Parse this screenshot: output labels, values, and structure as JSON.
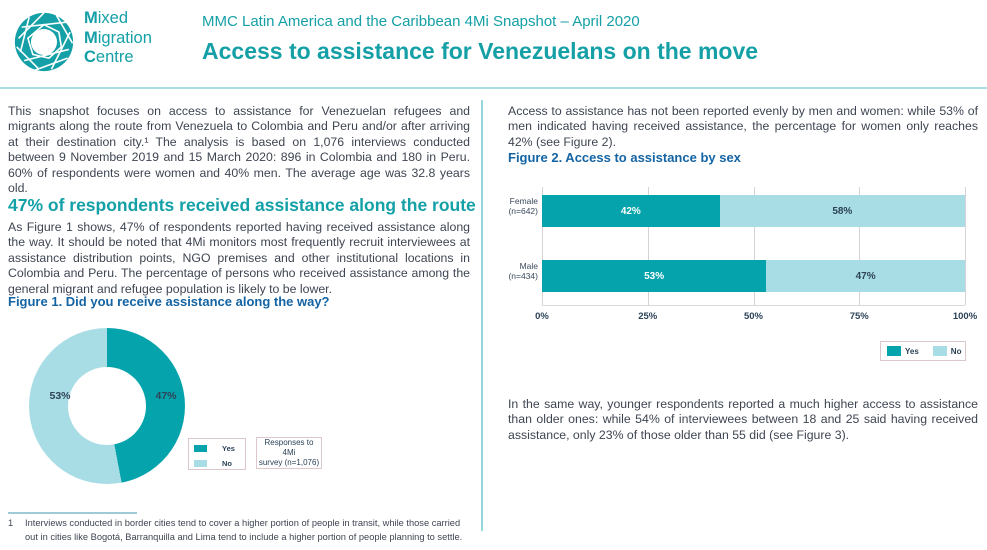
{
  "header": {
    "logo_lines": [
      "Mixed",
      "Migration",
      "Centre"
    ],
    "kicker": "MMC Latin America and the Caribbean 4Mi Snapshot – April 2020",
    "title": "Access to assistance for Venezuelans on the move"
  },
  "colors": {
    "teal_brand": "#14a0a6",
    "series_yes": "#05a3ab",
    "series_no": "#a9dde5",
    "figure_title_blue": "#1464a4"
  },
  "left": {
    "intro": "This snapshot focuses on access to assistance for Venezuelan refugees and migrants along the route from Venezuela to Colombia and Peru and/or after arriving at their destination city.¹ The analysis is based on 1,076 interviews conducted between 9 November 2019 and 15 March 2020: 896 in Colombia and 180 in Peru. 60% of respondents were women and 40% men. The average age was 32.8 years old.",
    "section_heading": "47% of respondents received assistance along the route",
    "body": "As Figure 1 shows, 47% of respondents reported having received assistance along the way. It should be noted that 4Mi monitors most frequently recruit interviewees at assistance distribution points, NGO premises and other institutional locations in Colombia and Peru. The percentage of persons who received assistance among the general migrant and refugee population is likely to be lower.",
    "figure1": {
      "title": "Figure 1. Did you receive assistance along the way?",
      "yes_pct": 47,
      "no_pct": 53,
      "yes_label": "47%",
      "no_label": "53%",
      "legend_yes": "Yes",
      "legend_no": "No",
      "note_line1": "Responses to 4Mi",
      "note_line2": "survey (n=1,076)"
    }
  },
  "right": {
    "intro": "Access to assistance has not been reported evenly by men and women: while 53% of men indicated having received assistance, the percentage for women only reaches 42% (see Figure 2).",
    "figure2": {
      "title": "Figure 2. Access to assistance by sex",
      "rows": [
        {
          "cat_line1": "Female",
          "cat_line2": "(n=642)",
          "yes": 42,
          "no": 58,
          "yes_label": "42%",
          "no_label": "58%"
        },
        {
          "cat_line1": "Male",
          "cat_line2": "(n=434)",
          "yes": 53,
          "no": 47,
          "yes_label": "53%",
          "no_label": "47%"
        }
      ],
      "ticks": [
        "0%",
        "25%",
        "50%",
        "75%",
        "100%"
      ],
      "legend_yes": "Yes",
      "legend_no": "No"
    },
    "body": "In the same way, younger respondents reported a much higher access to assistance than older ones: while 54% of interviewees between 18 and 25 said having received assistance, only 23% of those older than 55 did (see Figure 3)."
  },
  "footnote": {
    "marker": "1",
    "text": "Interviews conducted in border cities tend to cover a higher portion of people in transit, while those carried out in cities like Bogotá, Barranquilla and Lima tend to include a higher portion of people planning to settle."
  },
  "chart_data": [
    {
      "type": "pie",
      "title": "Figure 1. Did you receive assistance along the way?",
      "labels": [
        "Yes",
        "No"
      ],
      "values": [
        47,
        53
      ],
      "colors": [
        "#05a3ab",
        "#a9dde5"
      ],
      "donut": true,
      "annotation": "Responses to 4Mi survey (n=1,076)",
      "legend_position": "right"
    },
    {
      "type": "bar",
      "subtype": "horizontal-stacked",
      "title": "Figure 2. Access to assistance by sex",
      "categories": [
        "Female (n=642)",
        "Male (n=434)"
      ],
      "series": [
        {
          "name": "Yes",
          "values": [
            42,
            53
          ],
          "color": "#05a3ab"
        },
        {
          "name": "No",
          "values": [
            58,
            47
          ],
          "color": "#a9dde5"
        }
      ],
      "xlabel": "",
      "ylabel": "",
      "xlim": [
        0,
        100
      ],
      "xticks": [
        "0%",
        "25%",
        "50%",
        "75%",
        "100%"
      ],
      "grid": true,
      "legend_position": "bottom-right"
    }
  ]
}
